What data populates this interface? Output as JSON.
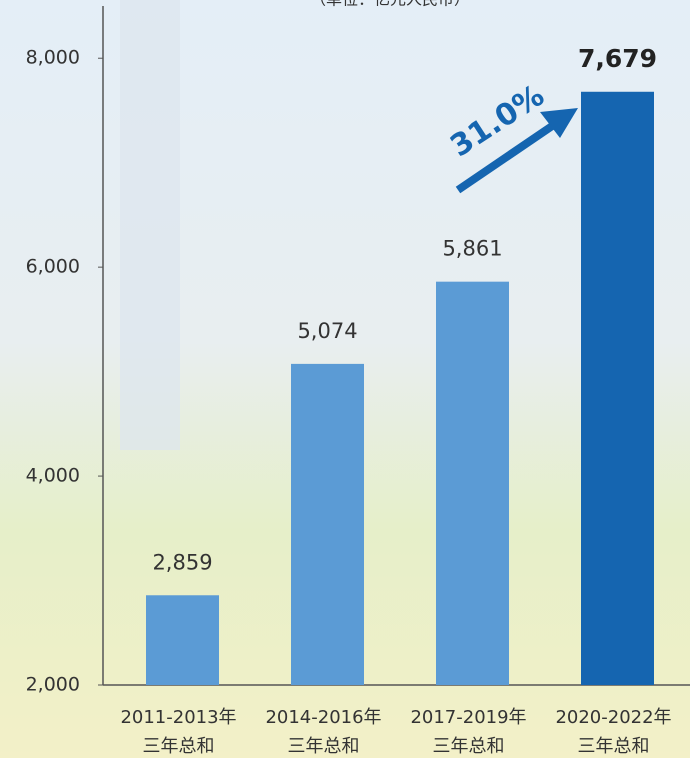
{
  "chart_data": {
    "type": "bar",
    "subtitle": "（单位：亿元人民币）",
    "categories": [
      [
        "2011-2013年",
        "三年总和"
      ],
      [
        "2014-2016年",
        "三年总和"
      ],
      [
        "2017-2019年",
        "三年总和"
      ],
      [
        "2020-2022年",
        "三年总和"
      ]
    ],
    "values": [
      2859,
      5074,
      5861,
      7679
    ],
    "value_labels": [
      "2,859",
      "5,074",
      "5,861",
      "7,679"
    ],
    "colors": [
      "#5b9bd5",
      "#5b9bd5",
      "#5b9bd5",
      "#1565b0"
    ],
    "annotation": "31.0%",
    "ylim": [
      2000,
      8500
    ],
    "yticks": [
      {
        "value": 2000,
        "label": "2,000"
      },
      {
        "value": 4000,
        "label": "4,000"
      },
      {
        "value": 6000,
        "label": "6,000"
      },
      {
        "value": 8000,
        "label": "8,000"
      }
    ],
    "grid": false
  }
}
